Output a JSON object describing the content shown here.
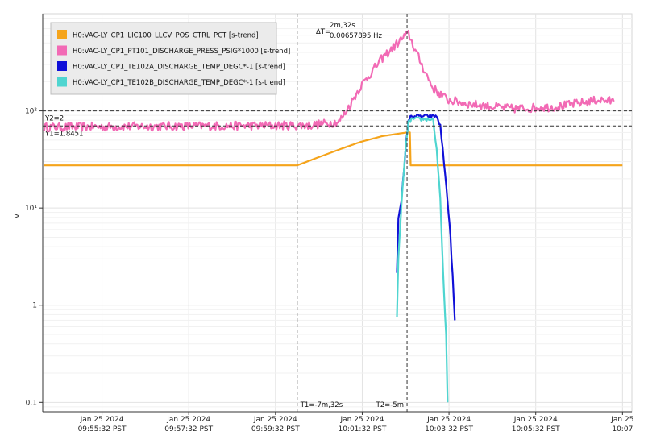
{
  "chart_data": {
    "type": "line",
    "title": "",
    "xlabel": "",
    "ylabel": "V",
    "y_scale": "log",
    "ylim": [
      0.08,
      1000
    ],
    "grid": true,
    "legend_position": "top-left",
    "y_ticks": [
      {
        "value": 100,
        "label": "10²"
      },
      {
        "value": 10,
        "label": "10¹"
      },
      {
        "value": 1,
        "label": "1"
      },
      {
        "value": 0.1,
        "label": "0.1"
      }
    ],
    "x_range": [
      "2024-01-25T09:54:10",
      "2024-01-25T10:07:45"
    ],
    "x_ticks": [
      {
        "value": "2024-01-25T09:55:32",
        "date": "Jan 25 2024",
        "time": "09:55:32 PST"
      },
      {
        "value": "2024-01-25T09:57:32",
        "date": "Jan 25 2024",
        "time": "09:57:32 PST"
      },
      {
        "value": "2024-01-25T09:59:32",
        "date": "Jan 25 2024",
        "time": "09:59:32 PST"
      },
      {
        "value": "2024-01-25T10:01:32",
        "date": "Jan 25 2024",
        "time": "10:01:32 PST"
      },
      {
        "value": "2024-01-25T10:03:32",
        "date": "Jan 25 2024",
        "time": "10:03:32 PST"
      },
      {
        "value": "2024-01-25T10:05:32",
        "date": "Jan 25 2024",
        "time": "10:05:32 PST"
      },
      {
        "value": "2024-01-25T10:07:32",
        "date": "Jan 25",
        "time": "10:07"
      }
    ],
    "cursors": {
      "t1": {
        "time": "2024-01-25T10:00:02",
        "label": "T1=-7m,32s"
      },
      "t2": {
        "time": "2024-01-25T10:02:34",
        "label": "T2=-5m"
      },
      "y1": {
        "value": 70,
        "label": "Y1=1.8451"
      },
      "y2": {
        "value": 100,
        "label": "Y2=2"
      },
      "delta": {
        "prefix": "ΔT=",
        "time": "2m,32s",
        "freq": "0.00657895 Hz"
      }
    },
    "series": [
      {
        "name": "H0:VAC-LY_CP1_LIC100_LLCV_POS_CTRL_PCT [s-trend]",
        "color": "#f5a41b",
        "noise": 0,
        "points": [
          [
            "2024-01-25T09:54:12",
            27.5
          ],
          [
            "2024-01-25T10:00:02",
            27.5
          ],
          [
            "2024-01-25T10:00:30",
            33
          ],
          [
            "2024-01-25T10:01:00",
            40
          ],
          [
            "2024-01-25T10:01:30",
            48
          ],
          [
            "2024-01-25T10:02:00",
            55
          ],
          [
            "2024-01-25T10:02:34",
            60
          ],
          [
            "2024-01-25T10:02:38",
            60
          ],
          [
            "2024-01-25T10:02:39",
            27.5
          ],
          [
            "2024-01-25T10:07:32",
            27.5
          ]
        ]
      },
      {
        "name": "H0:VAC-LY_CP1_PT101_DISCHARGE_PRESS_PSIG*1000 [s-trend]",
        "color": "#f26ab5",
        "noise": 0.045,
        "points": [
          [
            "2024-01-25T09:54:12",
            68
          ],
          [
            "2024-01-25T09:58:00",
            70
          ],
          [
            "2024-01-25T10:00:20",
            71
          ],
          [
            "2024-01-25T10:01:00",
            77
          ],
          [
            "2024-01-25T10:01:10",
            100
          ],
          [
            "2024-01-25T10:01:30",
            180
          ],
          [
            "2024-01-25T10:02:00",
            350
          ],
          [
            "2024-01-25T10:02:30",
            580
          ],
          [
            "2024-01-25T10:02:36",
            620
          ],
          [
            "2024-01-25T10:02:50",
            350
          ],
          [
            "2024-01-25T10:03:10",
            170
          ],
          [
            "2024-01-25T10:03:30",
            130
          ],
          [
            "2024-01-25T10:04:00",
            118
          ],
          [
            "2024-01-25T10:05:00",
            105
          ],
          [
            "2024-01-25T10:06:00",
            110
          ],
          [
            "2024-01-25T10:07:00",
            130
          ],
          [
            "2024-01-25T10:07:20",
            125
          ]
        ]
      },
      {
        "name": "H0:VAC-LY_CP1_TE102A_DISCHARGE_TEMP_DEGC*-1 [s-trend]",
        "color": "#1010d8",
        "noise": 0.02,
        "points": [
          [
            "2024-01-25T10:02:20",
            2.2
          ],
          [
            "2024-01-25T10:02:22",
            8
          ],
          [
            "2024-01-25T10:02:26",
            12
          ],
          [
            "2024-01-25T10:02:30",
            25
          ],
          [
            "2024-01-25T10:02:33",
            50
          ],
          [
            "2024-01-25T10:02:36",
            80
          ],
          [
            "2024-01-25T10:02:40",
            88
          ],
          [
            "2024-01-25T10:03:15",
            88
          ],
          [
            "2024-01-25T10:03:20",
            70
          ],
          [
            "2024-01-25T10:03:25",
            30
          ],
          [
            "2024-01-25T10:03:30",
            12
          ],
          [
            "2024-01-25T10:03:34",
            5
          ],
          [
            "2024-01-25T10:03:37",
            2
          ],
          [
            "2024-01-25T10:03:40",
            0.7
          ]
        ]
      },
      {
        "name": "H0:VAC-LY_CP1_TE102B_DISCHARGE_TEMP_DEGC*-1 [s-trend]",
        "color": "#4fd5d0",
        "noise": 0.02,
        "points": [
          [
            "2024-01-25T10:02:20",
            0.75
          ],
          [
            "2024-01-25T10:02:22",
            3
          ],
          [
            "2024-01-25T10:02:26",
            10
          ],
          [
            "2024-01-25T10:02:31",
            35
          ],
          [
            "2024-01-25T10:02:36",
            75
          ],
          [
            "2024-01-25T10:02:40",
            82
          ],
          [
            "2024-01-25T10:03:10",
            82
          ],
          [
            "2024-01-25T10:03:15",
            40
          ],
          [
            "2024-01-25T10:03:20",
            12
          ],
          [
            "2024-01-25T10:03:24",
            2
          ],
          [
            "2024-01-25T10:03:28",
            0.5
          ],
          [
            "2024-01-25T10:03:30",
            0.1
          ]
        ]
      }
    ]
  }
}
